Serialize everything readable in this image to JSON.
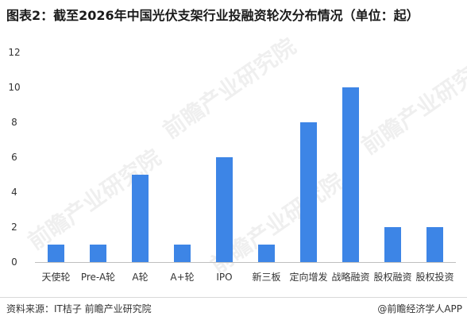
{
  "title": "图表2：截至2026年中国光伏支架行业投融资轮次分布情况（单位：起）",
  "source": "资料来源：IT桔子  前瞻产业研究院",
  "credit": "@前瞻经济学人APP",
  "watermark": "前瞻产业研究院",
  "colors": {
    "bar": "#3d85e6",
    "axis": "#bfbfbf"
  },
  "chart_data": {
    "type": "bar",
    "categories": [
      "天使轮",
      "Pre-A轮",
      "A轮",
      "A+轮",
      "IPO",
      "新三板",
      "定向增发",
      "战略融资",
      "股权融资",
      "股权投资"
    ],
    "values": [
      1,
      1,
      5,
      1,
      6,
      1,
      8,
      10,
      2,
      2
    ],
    "yticks": [
      0,
      2,
      4,
      6,
      8,
      10,
      12
    ],
    "ylim": [
      0,
      12
    ],
    "grid": false,
    "legend": "none"
  }
}
